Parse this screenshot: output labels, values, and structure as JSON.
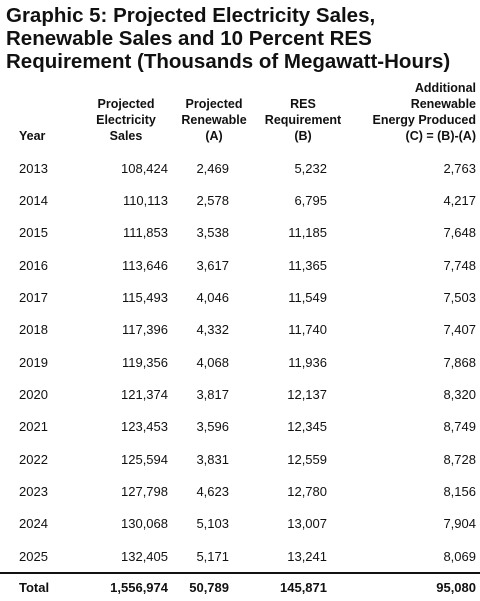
{
  "title_lines": [
    "Graphic 5: Projected Electricity Sales,",
    "Renewable Sales and 10 Percent RES",
    "Requirement (Thousands of Megawatt-Hours)"
  ],
  "headers": {
    "year": "Year",
    "sales": [
      "Projected",
      "Electricity",
      "Sales"
    ],
    "renewable": [
      "Projected",
      "Renewable",
      "(A)"
    ],
    "res": [
      "RES",
      "Requirement",
      "(B)"
    ],
    "additional": [
      "Additional",
      "Renewable",
      "Energy Produced",
      "(C) = (B)-(A)"
    ]
  },
  "chart_data": {
    "type": "table",
    "title": "Graphic 5: Projected Electricity Sales, Renewable Sales and 10 Percent RES Requirement (Thousands of Megawatt-Hours)",
    "columns": [
      "Year",
      "Projected Electricity Sales",
      "Projected Renewable (A)",
      "RES Requirement (B)",
      "Additional Renewable Energy Produced (C) = (B)-(A)"
    ],
    "rows": [
      [
        "2013",
        "108,424",
        "2,469",
        "5,232",
        "2,763"
      ],
      [
        "2014",
        "110,113",
        "2,578",
        "6,795",
        "4,217"
      ],
      [
        "2015",
        "111,853",
        "3,538",
        "11,185",
        "7,648"
      ],
      [
        "2016",
        "113,646",
        "3,617",
        "11,365",
        "7,748"
      ],
      [
        "2017",
        "115,493",
        "4,046",
        "11,549",
        "7,503"
      ],
      [
        "2018",
        "117,396",
        "4,332",
        "11,740",
        "7,407"
      ],
      [
        "2019",
        "119,356",
        "4,068",
        "11,936",
        "7,868"
      ],
      [
        "2020",
        "121,374",
        "3,817",
        "12,137",
        "8,320"
      ],
      [
        "2021",
        "123,453",
        "3,596",
        "12,345",
        "8,749"
      ],
      [
        "2022",
        "125,594",
        "3,831",
        "12,559",
        "8,728"
      ],
      [
        "2023",
        "127,798",
        "4,623",
        "12,780",
        "8,156"
      ],
      [
        "2024",
        "130,068",
        "5,103",
        "13,007",
        "7,904"
      ],
      [
        "2025",
        "132,405",
        "5,171",
        "13,241",
        "8,069"
      ]
    ],
    "total": [
      "Total",
      "1,556,974",
      "50,789",
      "145,871",
      "95,080"
    ]
  }
}
